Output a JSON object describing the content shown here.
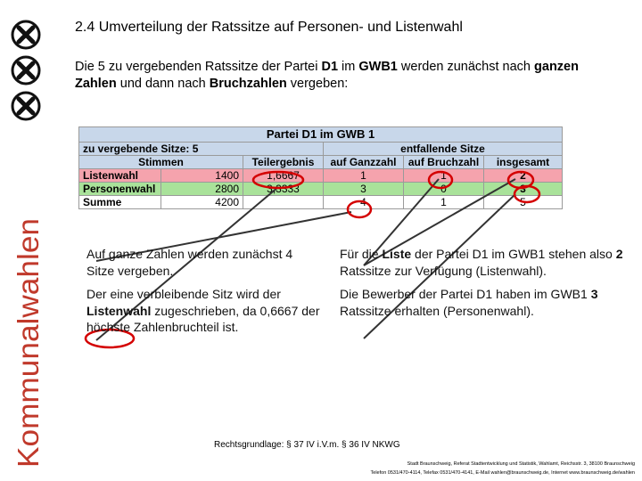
{
  "sidebar": {
    "vertical_title": "Kommunalwahlen",
    "color": "#c0392b"
  },
  "slide": {
    "title": "2.4 Umverteilung der Ratssitze auf Personen- und Listenwahl",
    "intro": {
      "p1": "Die 5 zu vergebenden Ratssitze der Partei ",
      "b1": "D1",
      "p2": " im ",
      "b2": "GWB1",
      "p3": " werden zunächst nach ",
      "b3": "ganzen Zahlen",
      "p4": " und dann nach ",
      "b4": "Bruchzahlen",
      "p5": " vergeben:"
    }
  },
  "table": {
    "title": "Partei D1 im GWB 1",
    "seats_label": "zu vergebende Sitze: 5",
    "group_header": "entfallende Sitze",
    "headers": [
      "Stimmen",
      "Teilergebnis",
      "auf Ganzzahl",
      "auf Bruchzahl",
      "insgesamt"
    ],
    "rows": [
      {
        "label": "Listenwahl",
        "votes": "1400",
        "partial": "1,6667",
        "integer": "1",
        "fraction": "1",
        "total": "2"
      },
      {
        "label": "Personenwahl",
        "votes": "2800",
        "partial": "3,3333",
        "integer": "3",
        "fraction": "0",
        "total": "3"
      },
      {
        "label": "Summe",
        "votes": "4200",
        "partial": "",
        "integer": "4",
        "fraction": "1",
        "total": "5"
      }
    ]
  },
  "left_text": {
    "p1": "Auf ganze Zahlen werden zunächst 4 Sitze vergeben.",
    "p2a": "Der eine verbleibende Sitz wird der ",
    "p2b": "Listenwahl",
    "p2c": " zugeschrieben, da 0,6667 der höchste Zahlenbruchteil ist."
  },
  "right_text": {
    "p1a": "Für die ",
    "p1b": "Liste",
    "p1c": " der Partei D1 im GWB1 stehen also ",
    "p1d": "2",
    "p1e": " Ratssitze zur Verfügung (Listenwahl).",
    "p2a": "Die Bewerber der Partei D1 haben im GWB1 ",
    "p2b": "3",
    "p2c": " Ratssitze erhalten (Personenwahl)."
  },
  "legal": "Rechtsgrundlage: § 37 IV i.V.m. § 36 IV NKWG",
  "footer": {
    "line1": "Stadt Braunschweig, Referat Stadtentwicklung und Statistik, Wahlamt, Reichsstr. 3, 38100 Braunschweig",
    "line2": "Telefon 0531/470-4114, Telefax 0531/470-4141, E-Mail wahlen@braunschweig.de, Internet www.braunschweig.de/wahlen"
  },
  "colors": {
    "header_bg": "#c8d7ea",
    "list_row": "#f5a3ad",
    "person_row": "#a9e29a",
    "highlight_circle": "#d40000"
  }
}
